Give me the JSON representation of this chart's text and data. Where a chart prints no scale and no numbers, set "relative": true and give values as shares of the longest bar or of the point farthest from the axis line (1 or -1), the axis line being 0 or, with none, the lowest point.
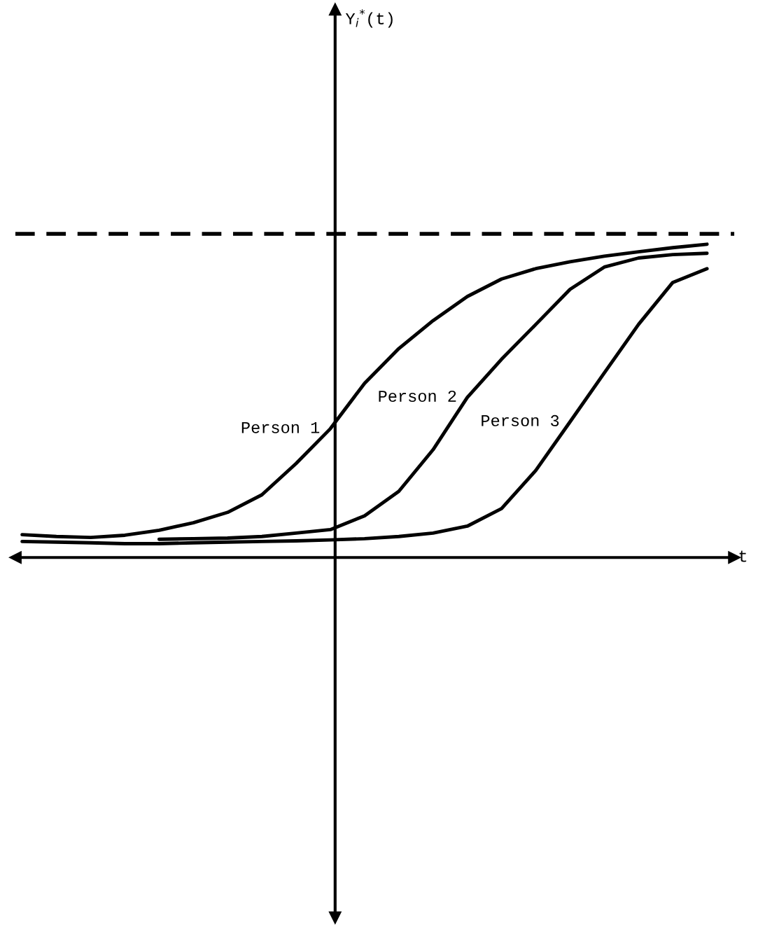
{
  "chart_data": {
    "type": "line",
    "relative": true,
    "xlabel": "t",
    "annotations": [
      "Y$_{i}$$^{*}$(t)"
    ],
    "categories": [
      null,
      null,
      null,
      null,
      null,
      null,
      null,
      null,
      null,
      null,
      null,
      null,
      null,
      null,
      null,
      null,
      null,
      null,
      null,
      null,
      null
    ],
    "series": [
      {
        "name": "Person 1",
        "color": "#000000",
        "values": [
          0.073,
          0.067,
          0.064,
          0.071,
          0.087,
          0.111,
          0.144,
          0.2,
          0.3,
          0.411,
          0.556,
          0.667,
          0.756,
          0.833,
          0.889,
          0.922,
          0.944,
          0.962,
          0.976,
          0.989,
          1.0
        ]
      },
      {
        "name": "Person 2",
        "color": "#000000",
        "values": [
          null,
          null,
          null,
          null,
          0.058,
          0.06,
          0.062,
          0.067,
          0.078,
          0.089,
          0.133,
          0.211,
          0.344,
          0.511,
          0.633,
          0.744,
          0.856,
          0.927,
          0.956,
          0.967,
          0.971
        ]
      },
      {
        "name": "Person 3",
        "color": "#000000",
        "values": [
          0.051,
          0.049,
          0.047,
          0.044,
          0.044,
          0.047,
          0.049,
          0.051,
          0.053,
          0.056,
          0.06,
          0.067,
          0.078,
          0.1,
          0.156,
          0.278,
          0.433,
          0.589,
          0.744,
          0.878,
          0.922
        ]
      }
    ],
    "ref_lines": [
      {
        "axis": "y",
        "value": 1.033,
        "color": "#000000",
        "line_style": "dashed"
      }
    ],
    "grid": false,
    "legend": false,
    "marker": "none",
    "line_style": "solid"
  }
}
